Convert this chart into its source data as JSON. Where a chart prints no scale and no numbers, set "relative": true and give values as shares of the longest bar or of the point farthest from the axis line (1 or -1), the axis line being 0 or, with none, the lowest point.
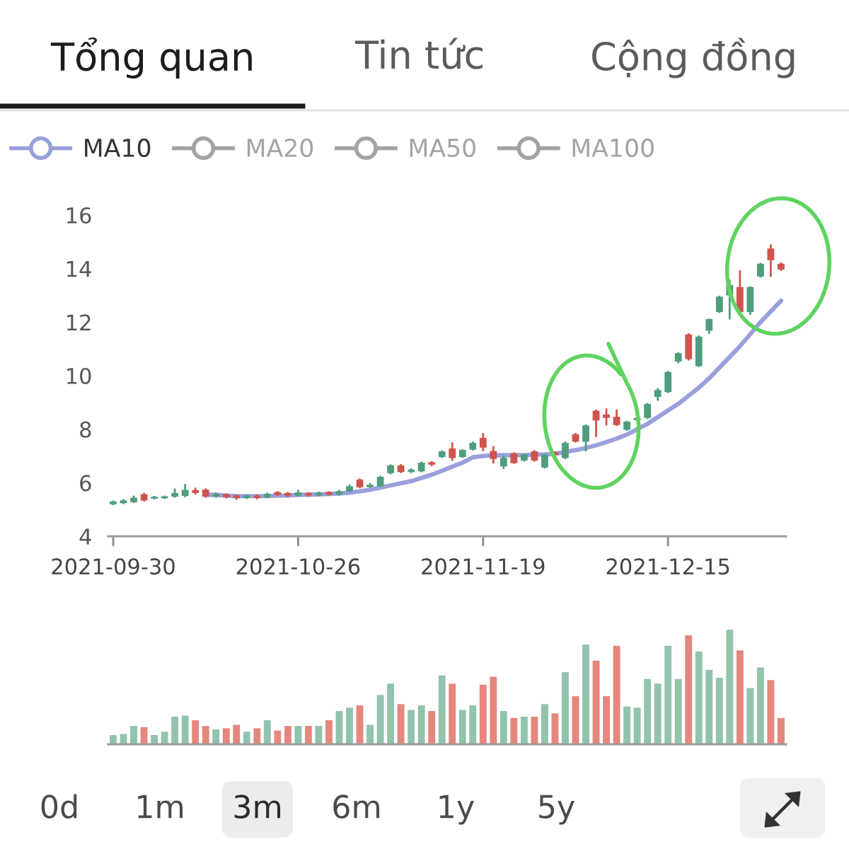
{
  "chart_data": [
    {
      "type": "other",
      "annotations": [
        "Tổng quan",
        "Tin tức",
        "Cộng đồng"
      ]
    },
    {
      "type": "candlestick",
      "categories": [
        "2021-09-30",
        null,
        null,
        null,
        null,
        null,
        null,
        null,
        null,
        null,
        null,
        null,
        null,
        null,
        null,
        null,
        null,
        null,
        "2021-10-26",
        null,
        null,
        null,
        null,
        null,
        null,
        null,
        null,
        null,
        null,
        null,
        null,
        null,
        null,
        null,
        null,
        null,
        "2021-11-19",
        null,
        null,
        null,
        null,
        null,
        null,
        null,
        null,
        null,
        null,
        null,
        null,
        null,
        null,
        null,
        null,
        null,
        "2021-12-15",
        null,
        null,
        null,
        null,
        null,
        null,
        null,
        null,
        null,
        null,
        null
      ],
      "ohlc": [
        [
          5.22,
          5.3,
          5.2,
          5.28
        ],
        [
          5.26,
          5.35,
          5.24,
          5.32
        ],
        [
          5.3,
          5.48,
          5.28,
          5.42
        ],
        [
          5.55,
          5.58,
          5.34,
          5.36
        ],
        [
          5.43,
          5.47,
          5.42,
          5.46
        ],
        [
          5.44,
          5.48,
          5.43,
          5.47
        ],
        [
          5.5,
          5.75,
          5.48,
          5.6
        ],
        [
          5.53,
          5.92,
          5.5,
          5.71
        ],
        [
          5.7,
          5.78,
          5.6,
          5.64
        ],
        [
          5.72,
          5.75,
          5.48,
          5.5
        ],
        [
          5.5,
          5.6,
          5.48,
          5.55
        ],
        [
          5.55,
          5.57,
          5.45,
          5.48
        ],
        [
          5.5,
          5.52,
          5.4,
          5.44
        ],
        [
          5.45,
          5.52,
          5.43,
          5.5
        ],
        [
          5.5,
          5.52,
          5.42,
          5.45
        ],
        [
          5.48,
          5.6,
          5.46,
          5.56
        ],
        [
          5.63,
          5.65,
          5.55,
          5.57
        ],
        [
          5.6,
          5.62,
          5.5,
          5.54
        ],
        [
          5.54,
          5.7,
          5.52,
          5.62
        ],
        [
          5.6,
          5.62,
          5.52,
          5.55
        ],
        [
          5.55,
          5.63,
          5.53,
          5.6
        ],
        [
          5.63,
          5.65,
          5.56,
          5.58
        ],
        [
          5.58,
          5.7,
          5.56,
          5.66
        ],
        [
          5.7,
          5.9,
          5.68,
          5.85
        ],
        [
          6.1,
          6.12,
          5.83,
          5.85
        ],
        [
          5.86,
          5.95,
          5.85,
          5.9
        ],
        [
          5.89,
          6.22,
          5.87,
          6.2
        ],
        [
          6.38,
          6.65,
          6.35,
          6.63
        ],
        [
          6.63,
          6.66,
          6.4,
          6.42
        ],
        [
          6.42,
          6.5,
          6.4,
          6.47
        ],
        [
          6.45,
          6.75,
          6.43,
          6.73
        ],
        [
          6.75,
          6.77,
          6.65,
          6.7
        ],
        [
          6.98,
          7.17,
          6.96,
          7.15
        ],
        [
          7.26,
          7.47,
          6.85,
          6.94
        ],
        [
          6.98,
          7.22,
          6.96,
          7.2
        ],
        [
          7.26,
          7.5,
          7.24,
          7.47
        ],
        [
          7.65,
          7.82,
          7.22,
          7.33
        ],
        [
          7.16,
          7.33,
          6.76,
          6.91
        ],
        [
          6.63,
          6.98,
          6.55,
          6.91
        ],
        [
          7.08,
          7.1,
          6.74,
          6.76
        ],
        [
          6.85,
          7.05,
          6.83,
          7.03
        ],
        [
          7.15,
          7.18,
          6.83,
          6.85
        ],
        [
          6.59,
          7.05,
          6.57,
          7.03
        ],
        [
          7.12,
          7.14,
          7.05,
          7.07
        ],
        [
          6.94,
          7.5,
          6.92,
          7.47
        ],
        [
          7.79,
          7.82,
          7.54,
          7.56
        ],
        [
          7.56,
          8.14,
          7.21,
          8.12
        ],
        [
          8.67,
          8.7,
          7.74,
          8.35
        ],
        [
          8.53,
          8.74,
          8.18,
          8.44
        ],
        [
          8.44,
          8.7,
          8.16,
          8.18
        ],
        [
          8.0,
          8.28,
          7.98,
          8.26
        ],
        [
          8.36,
          8.42,
          8.34,
          8.4
        ],
        [
          8.44,
          8.94,
          8.42,
          8.92
        ],
        [
          9.23,
          9.5,
          9.1,
          9.44
        ],
        [
          9.41,
          10.14,
          9.39,
          10.12
        ],
        [
          10.55,
          10.84,
          10.5,
          10.82
        ],
        [
          11.52,
          11.55,
          10.6,
          10.64
        ],
        [
          10.38,
          11.46,
          10.36,
          11.44
        ],
        [
          11.7,
          12.1,
          11.6,
          12.09
        ],
        [
          12.4,
          12.95,
          12.38,
          12.93
        ],
        [
          13.02,
          13.55,
          12.14,
          13.37
        ],
        [
          13.29,
          13.9,
          12.31,
          12.4
        ],
        [
          12.4,
          13.31,
          12.31,
          13.29
        ],
        [
          13.73,
          14.18,
          13.7,
          14.16
        ],
        [
          14.73,
          14.87,
          13.73,
          14.34
        ],
        [
          14.16,
          14.2,
          13.95,
          13.99
        ]
      ],
      "colors": [
        "#4f9d7c",
        "#4f9d7c",
        "#4f9d7c",
        "#d0544c",
        "#4f9d7c",
        "#4f9d7c",
        "#4f9d7c",
        "#4f9d7c",
        "#d0544c",
        "#d0544c",
        "#4f9d7c",
        "#d0544c",
        "#d0544c",
        "#4f9d7c",
        "#d0544c",
        "#4f9d7c",
        "#d0544c",
        "#d0544c",
        "#4f9d7c",
        "#d0544c",
        "#4f9d7c",
        "#d0544c",
        "#4f9d7c",
        "#4f9d7c",
        "#d0544c",
        "#4f9d7c",
        "#4f9d7c",
        "#4f9d7c",
        "#d0544c",
        "#4f9d7c",
        "#4f9d7c",
        "#d0544c",
        "#4f9d7c",
        "#d0544c",
        "#4f9d7c",
        "#4f9d7c",
        "#d0544c",
        "#d0544c",
        "#4f9d7c",
        "#d0544c",
        "#4f9d7c",
        "#d0544c",
        "#4f9d7c",
        "#d0544c",
        "#4f9d7c",
        "#d0544c",
        "#4f9d7c",
        "#d0544c",
        "#d0544c",
        "#d0544c",
        "#4f9d7c",
        "#4f9d7c",
        "#4f9d7c",
        "#4f9d7c",
        "#4f9d7c",
        "#4f9d7c",
        "#d0544c",
        "#4f9d7c",
        "#4f9d7c",
        "#4f9d7c",
        "#4f9d7c",
        "#d0544c",
        "#4f9d7c",
        "#4f9d7c",
        "#d0544c",
        "#d0544c"
      ],
      "series": [
        {
          "name": "MA10",
          "type": "line",
          "color": "#9aa0dc",
          "values": [
            null,
            null,
            null,
            null,
            null,
            null,
            null,
            null,
            null,
            5.55,
            5.55,
            5.52,
            5.5,
            5.5,
            5.5,
            5.5,
            5.52,
            5.52,
            5.55,
            5.55,
            5.57,
            5.58,
            5.6,
            5.63,
            5.68,
            5.74,
            5.82,
            5.9,
            5.98,
            6.06,
            6.18,
            6.3,
            6.45,
            6.6,
            6.75,
            6.95,
            7.0,
            7.03,
            7.03,
            7.03,
            7.03,
            7.05,
            7.06,
            7.08,
            7.15,
            7.22,
            7.3,
            7.4,
            7.52,
            7.65,
            7.8,
            8.0,
            8.2,
            8.45,
            8.7,
            8.95,
            9.25,
            9.55,
            9.9,
            10.3,
            10.7,
            11.1,
            11.55,
            12.0,
            12.4,
            12.8
          ]
        },
        {
          "name": "MA20",
          "type": "line",
          "color": "#a3a3a3",
          "values": [
            null,
            null,
            null,
            null,
            null,
            null,
            null,
            null,
            null,
            null,
            null,
            null,
            null,
            null,
            null,
            null,
            null,
            null,
            null,
            null,
            null,
            null,
            null,
            null,
            null,
            null,
            null,
            null,
            null,
            null,
            null,
            null,
            null,
            null,
            null,
            null,
            null,
            null,
            null,
            null,
            null,
            null,
            null,
            null,
            null,
            null,
            null,
            null,
            null,
            null,
            null,
            null,
            null,
            null,
            null,
            null,
            null,
            null,
            null,
            null,
            null,
            null,
            null,
            null,
            null,
            null
          ]
        },
        {
          "name": "MA50",
          "type": "line",
          "color": "#a3a3a3",
          "values": [
            null,
            null,
            null,
            null,
            null,
            null,
            null,
            null,
            null,
            null,
            null,
            null,
            null,
            null,
            null,
            null,
            null,
            null,
            null,
            null,
            null,
            null,
            null,
            null,
            null,
            null,
            null,
            null,
            null,
            null,
            null,
            null,
            null,
            null,
            null,
            null,
            null,
            null,
            null,
            null,
            null,
            null,
            null,
            null,
            null,
            null,
            null,
            null,
            null,
            null,
            null,
            null,
            null,
            null,
            null,
            null,
            null,
            null,
            null,
            null,
            null,
            null,
            null,
            null,
            null,
            null
          ]
        },
        {
          "name": "MA100",
          "type": "line",
          "color": "#a3a3a3",
          "values": [
            null,
            null,
            null,
            null,
            null,
            null,
            null,
            null,
            null,
            null,
            null,
            null,
            null,
            null,
            null,
            null,
            null,
            null,
            null,
            null,
            null,
            null,
            null,
            null,
            null,
            null,
            null,
            null,
            null,
            null,
            null,
            null,
            null,
            null,
            null,
            null,
            null,
            null,
            null,
            null,
            null,
            null,
            null,
            null,
            null,
            null,
            null,
            null,
            null,
            null,
            null,
            null,
            null,
            null,
            null,
            null,
            null,
            null,
            null,
            null,
            null,
            null,
            null,
            null,
            null,
            null
          ]
        }
      ],
      "ylim": [
        4,
        16
      ],
      "yticks": [
        4,
        6,
        8,
        10,
        12,
        14,
        16
      ],
      "legend": "top left"
    },
    {
      "type": "bar",
      "relative": true,
      "categories": [
        null,
        null,
        null,
        null,
        null,
        null,
        null,
        null,
        null,
        null,
        null,
        null,
        null,
        null,
        null,
        null,
        null,
        null,
        null,
        null,
        null,
        null,
        null,
        null,
        null,
        null,
        null,
        null,
        null,
        null,
        null,
        null,
        null,
        null,
        null,
        null,
        null,
        null,
        null,
        null,
        null,
        null,
        null,
        null,
        null,
        null,
        null,
        null,
        null,
        null,
        null,
        null,
        null,
        null,
        null,
        null,
        null,
        null,
        null,
        null,
        null,
        null,
        null,
        null,
        null,
        null
      ],
      "values": [
        0.08,
        0.09,
        0.16,
        0.15,
        0.08,
        0.11,
        0.24,
        0.25,
        0.21,
        0.16,
        0.13,
        0.14,
        0.17,
        0.11,
        0.14,
        0.21,
        0.12,
        0.16,
        0.16,
        0.16,
        0.16,
        0.21,
        0.29,
        0.32,
        0.34,
        0.17,
        0.43,
        0.53,
        0.35,
        0.3,
        0.34,
        0.29,
        0.6,
        0.53,
        0.3,
        0.34,
        0.52,
        0.59,
        0.29,
        0.23,
        0.24,
        0.24,
        0.35,
        0.27,
        0.63,
        0.42,
        0.87,
        0.73,
        0.42,
        0.86,
        0.33,
        0.32,
        0.57,
        0.53,
        0.86,
        0.57,
        0.95,
        0.81,
        0.65,
        0.58,
        1,
        0.82,
        0.49,
        0.67,
        0.56,
        0.23
      ],
      "colors": [
        "#92c3ac",
        "#92c3ac",
        "#92c3ac",
        "#e5877d",
        "#92c3ac",
        "#92c3ac",
        "#92c3ac",
        "#92c3ac",
        "#e5877d",
        "#e5877d",
        "#92c3ac",
        "#e5877d",
        "#e5877d",
        "#92c3ac",
        "#e5877d",
        "#92c3ac",
        "#e5877d",
        "#e5877d",
        "#92c3ac",
        "#e5877d",
        "#92c3ac",
        "#e5877d",
        "#92c3ac",
        "#92c3ac",
        "#e5877d",
        "#92c3ac",
        "#92c3ac",
        "#92c3ac",
        "#e5877d",
        "#92c3ac",
        "#92c3ac",
        "#e5877d",
        "#92c3ac",
        "#e5877d",
        "#92c3ac",
        "#92c3ac",
        "#e5877d",
        "#e5877d",
        "#92c3ac",
        "#e5877d",
        "#92c3ac",
        "#e5877d",
        "#92c3ac",
        "#e5877d",
        "#92c3ac",
        "#e5877d",
        "#92c3ac",
        "#e5877d",
        "#e5877d",
        "#e5877d",
        "#92c3ac",
        "#92c3ac",
        "#92c3ac",
        "#92c3ac",
        "#92c3ac",
        "#92c3ac",
        "#e5877d",
        "#92c3ac",
        "#92c3ac",
        "#92c3ac",
        "#92c3ac",
        "#e5877d",
        "#92c3ac",
        "#92c3ac",
        "#e5877d",
        "#e5877d"
      ]
    },
    {
      "type": "other",
      "annotations": [
        "0d",
        "1m",
        "3m",
        "6m",
        "1y",
        "5y"
      ]
    }
  ]
}
